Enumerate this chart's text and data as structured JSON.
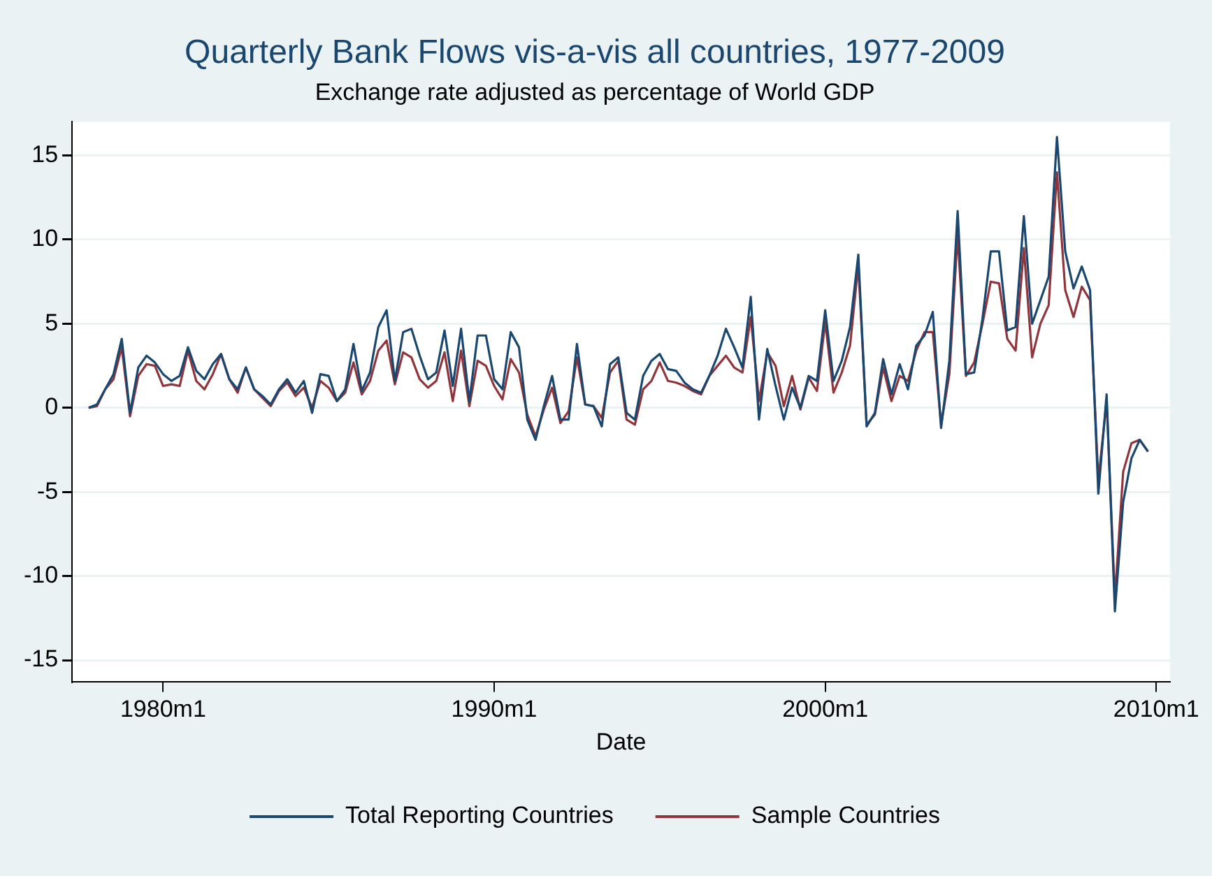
{
  "chart_data": {
    "type": "line",
    "title": "Quarterly Bank Flows vis-a-vis all countries, 1977-2009",
    "subtitle": "Exchange rate adjusted as percentage of World GDP",
    "xlabel": "Date",
    "x": [
      "1977-10",
      "1978-01",
      "1978-04",
      "1978-07",
      "1978-10",
      "1979-01",
      "1979-04",
      "1979-07",
      "1979-10",
      "1980-01",
      "1980-04",
      "1980-07",
      "1980-10",
      "1981-01",
      "1981-04",
      "1981-07",
      "1981-10",
      "1982-01",
      "1982-04",
      "1982-07",
      "1982-10",
      "1983-01",
      "1983-04",
      "1983-07",
      "1983-10",
      "1984-01",
      "1984-04",
      "1984-07",
      "1984-10",
      "1985-01",
      "1985-04",
      "1985-07",
      "1985-10",
      "1986-01",
      "1986-04",
      "1986-07",
      "1986-10",
      "1987-01",
      "1987-04",
      "1987-07",
      "1987-10",
      "1988-01",
      "1988-04",
      "1988-07",
      "1988-10",
      "1989-01",
      "1989-04",
      "1989-07",
      "1989-10",
      "1990-01",
      "1990-04",
      "1990-07",
      "1990-10",
      "1991-01",
      "1991-04",
      "1991-07",
      "1991-10",
      "1992-01",
      "1992-04",
      "1992-07",
      "1992-10",
      "1993-01",
      "1993-04",
      "1993-07",
      "1993-10",
      "1994-01",
      "1994-04",
      "1994-07",
      "1994-10",
      "1995-01",
      "1995-04",
      "1995-07",
      "1995-10",
      "1996-01",
      "1996-04",
      "1996-07",
      "1996-10",
      "1997-01",
      "1997-04",
      "1997-07",
      "1997-10",
      "1998-01",
      "1998-04",
      "1998-07",
      "1998-10",
      "1999-01",
      "1999-04",
      "1999-07",
      "1999-10",
      "2000-01",
      "2000-04",
      "2000-07",
      "2000-10",
      "2001-01",
      "2001-04",
      "2001-07",
      "2001-10",
      "2002-01",
      "2002-04",
      "2002-07",
      "2002-10",
      "2003-01",
      "2003-04",
      "2003-07",
      "2003-10",
      "2004-01",
      "2004-04",
      "2004-07",
      "2004-10",
      "2005-01",
      "2005-04",
      "2005-07",
      "2005-10",
      "2006-01",
      "2006-04",
      "2006-07",
      "2006-10",
      "2007-01",
      "2007-04",
      "2007-07",
      "2007-10",
      "2008-01",
      "2008-04",
      "2008-07",
      "2008-10",
      "2009-01",
      "2009-04",
      "2009-07",
      "2009-10"
    ],
    "series": [
      {
        "name": "Total Reporting Countries",
        "color": "#1a476f",
        "values": [
          0,
          0.2,
          1.1,
          2.0,
          4.1,
          -0.3,
          2.4,
          3.1,
          2.7,
          2.0,
          1.6,
          1.9,
          3.6,
          2.2,
          1.7,
          2.6,
          3.2,
          1.7,
          1.1,
          2.4,
          1.1,
          0.7,
          0.2,
          1.1,
          1.7,
          0.9,
          1.6,
          -0.3,
          2.0,
          1.9,
          0.4,
          1.1,
          3.8,
          1.0,
          2.1,
          4.8,
          5.8,
          1.6,
          4.5,
          4.7,
          3.1,
          1.7,
          2.1,
          4.6,
          1.3,
          4.7,
          0.4,
          4.3,
          4.3,
          1.7,
          1.1,
          4.5,
          3.6,
          -0.7,
          -1.9,
          0.1,
          1.9,
          -0.7,
          -0.7,
          3.8,
          0.2,
          0.1,
          -1.1,
          2.6,
          3.0,
          -0.3,
          -0.7,
          1.9,
          2.8,
          3.2,
          2.3,
          2.2,
          1.5,
          1.1,
          0.9,
          1.9,
          3.1,
          4.7,
          3.6,
          2.4,
          6.6,
          -0.7,
          3.5,
          1.3,
          -0.7,
          1.2,
          0,
          1.9,
          1.6,
          5.8,
          1.6,
          2.8,
          4.8,
          9.1,
          -1.1,
          -0.3,
          2.9,
          0.8,
          2.6,
          1.1,
          3.7,
          4.3,
          5.7,
          -1.2,
          2.8,
          11.7,
          2.0,
          2.1,
          5.3,
          9.3,
          9.3,
          4.6,
          4.8,
          11.4,
          5.0,
          6.4,
          7.8,
          16.1,
          9.3,
          7.1,
          8.4,
          7.0,
          -5.1,
          0.8,
          -12.1,
          -5.6,
          -3.0,
          -1.9,
          -2.6
        ]
      },
      {
        "name": "Sample Countries",
        "color": "#90353b",
        "values": [
          0,
          0.1,
          1.1,
          1.7,
          3.6,
          -0.5,
          1.9,
          2.6,
          2.5,
          1.3,
          1.4,
          1.3,
          3.4,
          1.6,
          1.1,
          2.0,
          3.2,
          1.7,
          0.9,
          2.4,
          1.1,
          0.6,
          0.1,
          1.0,
          1.5,
          0.7,
          1.2,
          0,
          1.6,
          1.2,
          0.4,
          0.9,
          2.7,
          0.8,
          1.6,
          3.4,
          4.0,
          1.4,
          3.3,
          3.0,
          1.7,
          1.2,
          1.6,
          3.3,
          0.4,
          3.4,
          0.1,
          2.8,
          2.5,
          1.3,
          0.5,
          2.9,
          2.1,
          -0.4,
          -1.7,
          -0.1,
          1.2,
          -0.9,
          -0.2,
          3.0,
          0.2,
          0.1,
          -0.6,
          2.1,
          2.8,
          -0.7,
          -1.0,
          1.1,
          1.6,
          2.7,
          1.6,
          1.5,
          1.3,
          1.0,
          0.8,
          1.9,
          2.5,
          3.1,
          2.4,
          2.1,
          5.4,
          0.4,
          3.3,
          2.5,
          0.1,
          1.9,
          -0.1,
          1.8,
          1.0,
          5.1,
          0.9,
          2.1,
          3.7,
          8.5,
          -1.0,
          -0.4,
          2.4,
          0.4,
          1.9,
          1.6,
          3.4,
          4.5,
          4.5,
          -1.0,
          2.0,
          10.3,
          1.9,
          2.7,
          5.0,
          7.5,
          7.4,
          4.1,
          3.4,
          9.5,
          3.0,
          5.0,
          6.1,
          14.0,
          7.0,
          5.4,
          7.2,
          6.4,
          -4.3,
          0.4,
          -11.3,
          -3.8,
          -2.1,
          -1.9,
          -2.6
        ]
      }
    ],
    "xlim": [
      "1977-04",
      "2010-06"
    ],
    "xticks": [
      {
        "value": "1980-01",
        "label": "1980m1"
      },
      {
        "value": "1990-01",
        "label": "1990m1"
      },
      {
        "value": "2000-01",
        "label": "2000m1"
      },
      {
        "value": "2010-01",
        "label": "2010m1"
      }
    ],
    "ylim": [
      -16.3,
      17
    ],
    "yticks": [
      -15,
      -10,
      -5,
      0,
      5,
      10,
      15
    ],
    "grid": "y",
    "legend": "bottom",
    "marker": "none",
    "line_style": "solid"
  }
}
